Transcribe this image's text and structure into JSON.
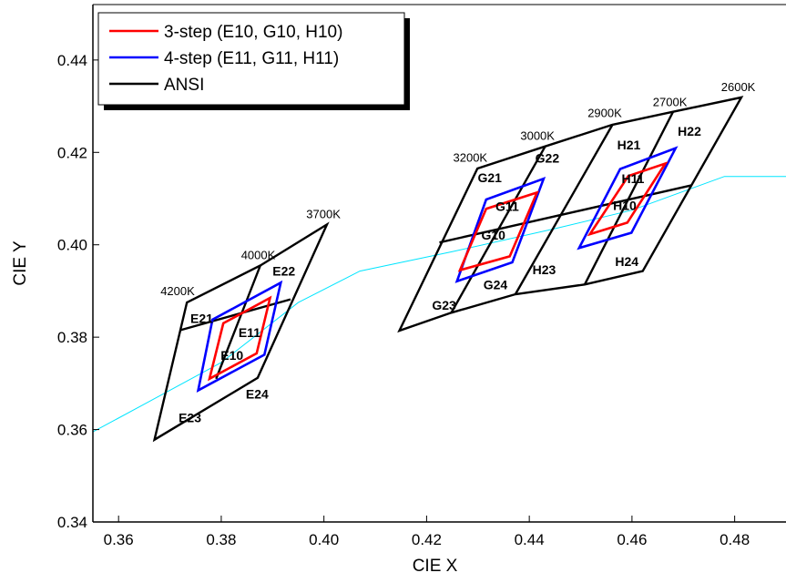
{
  "chart_data": {
    "type": "line",
    "title": "",
    "xlabel": "CIE X",
    "ylabel": "CIE Y",
    "xlim": [
      0.355,
      0.49
    ],
    "ylim": [
      0.34,
      0.452
    ],
    "x_ticks": [
      {
        "value": 0.36,
        "label": "0.36"
      },
      {
        "value": 0.38,
        "label": "0.38"
      },
      {
        "value": 0.4,
        "label": "0.40"
      },
      {
        "value": 0.42,
        "label": "0.42"
      },
      {
        "value": 0.44,
        "label": "0.44"
      },
      {
        "value": 0.46,
        "label": "0.46"
      },
      {
        "value": 0.48,
        "label": "0.48"
      }
    ],
    "y_ticks": [
      {
        "value": 0.34,
        "label": "0.34"
      },
      {
        "value": 0.36,
        "label": "0.36"
      },
      {
        "value": 0.38,
        "label": "0.38"
      },
      {
        "value": 0.4,
        "label": "0.40"
      },
      {
        "value": 0.42,
        "label": "0.42"
      },
      {
        "value": 0.44,
        "label": "0.44"
      }
    ],
    "grid": false,
    "legend_position": "top-left",
    "legend": [
      {
        "label": "3-step (E10, G10, H10)",
        "color": "#ff0000"
      },
      {
        "label": "4-step (E11, G11, H11)",
        "color": "#0000ff"
      },
      {
        "label": "ANSI",
        "color": "#000000"
      }
    ],
    "series": [
      {
        "name": "Planckian locus",
        "color": "#00e5ff",
        "kind": "curve",
        "points": [
          [
            0.355,
            0.3595
          ],
          [
            0.365,
            0.3655
          ],
          [
            0.38,
            0.3745
          ],
          [
            0.395,
            0.3875
          ],
          [
            0.407,
            0.3943
          ],
          [
            0.425,
            0.3985
          ],
          [
            0.445,
            0.4035
          ],
          [
            0.46,
            0.4075
          ],
          [
            0.478,
            0.4148
          ],
          [
            0.49,
            0.4148
          ]
        ]
      },
      {
        "name": "ANSI",
        "color": "#000000",
        "kind": "polygons",
        "polygons": [
          [
            [
              0.367,
              0.3578
            ],
            [
              0.3733,
              0.3875
            ],
            [
              0.3876,
              0.3955
            ],
            [
              0.4006,
              0.4044
            ],
            [
              0.3871,
              0.3712
            ]
          ],
          [
            [
              0.4147,
              0.3814
            ],
            [
              0.4299,
              0.4165
            ],
            [
              0.4431,
              0.4213
            ],
            [
              0.4562,
              0.426
            ],
            [
              0.468,
              0.4288
            ],
            [
              0.4813,
              0.4319
            ],
            [
              0.4621,
              0.3943
            ],
            [
              0.4508,
              0.3914
            ],
            [
              0.4373,
              0.3893
            ],
            [
              0.4248,
              0.3853
            ]
          ]
        ],
        "segments": [
          [
            [
              0.372,
              0.3815
            ],
            [
              0.3935,
              0.3882
            ]
          ],
          [
            [
              0.379,
              0.371
            ],
            [
              0.3876,
              0.3955
            ]
          ],
          [
            [
              0.4225,
              0.4005
            ],
            [
              0.4717,
              0.4129
            ]
          ],
          [
            [
              0.4248,
              0.3853
            ],
            [
              0.4431,
              0.4213
            ]
          ],
          [
            [
              0.4373,
              0.3893
            ],
            [
              0.4562,
              0.426
            ]
          ],
          [
            [
              0.4508,
              0.3914
            ],
            [
              0.468,
              0.4288
            ]
          ]
        ]
      },
      {
        "name": "4-step (E11, G11, H11)",
        "color": "#0000ff",
        "kind": "polygons",
        "polygons": [
          [
            [
              0.3755,
              0.3685
            ],
            [
              0.3783,
              0.3838
            ],
            [
              0.3916,
              0.3918
            ],
            [
              0.3884,
              0.3762
            ]
          ],
          [
            [
              0.4259,
              0.3921
            ],
            [
              0.4316,
              0.4098
            ],
            [
              0.4428,
              0.4143
            ],
            [
              0.4367,
              0.3962
            ]
          ],
          [
            [
              0.4497,
              0.3993
            ],
            [
              0.4577,
              0.4164
            ],
            [
              0.4685,
              0.4209
            ],
            [
              0.4599,
              0.4026
            ]
          ]
        ]
      },
      {
        "name": "3-step (E10, G10, H10)",
        "color": "#ff0000",
        "kind": "polygons",
        "polygons": [
          [
            [
              0.3777,
              0.371
            ],
            [
              0.3804,
              0.383
            ],
            [
              0.3895,
              0.3885
            ],
            [
              0.3869,
              0.3765
            ]
          ],
          [
            [
              0.4265,
              0.3945
            ],
            [
              0.4316,
              0.4078
            ],
            [
              0.4415,
              0.4113
            ],
            [
              0.4362,
              0.3975
            ]
          ],
          [
            [
              0.4518,
              0.4023
            ],
            [
              0.4593,
              0.4149
            ],
            [
              0.4665,
              0.4176
            ],
            [
              0.4591,
              0.4048
            ]
          ]
        ]
      }
    ],
    "cct_labels": [
      {
        "text": "4200K",
        "x": 0.3715,
        "y": 0.3891
      },
      {
        "text": "4000K",
        "x": 0.3872,
        "y": 0.3969
      },
      {
        "text": "3700K",
        "x": 0.3999,
        "y": 0.4058
      },
      {
        "text": "3200K",
        "x": 0.4285,
        "y": 0.418
      },
      {
        "text": "3000K",
        "x": 0.4416,
        "y": 0.4227
      },
      {
        "text": "2900K",
        "x": 0.4547,
        "y": 0.4276
      },
      {
        "text": "2700K",
        "x": 0.4674,
        "y": 0.43
      },
      {
        "text": "2600K",
        "x": 0.4807,
        "y": 0.4333
      }
    ],
    "bin_labels": [
      {
        "text": "E21",
        "x": 0.3762,
        "y": 0.3838
      },
      {
        "text": "E22",
        "x": 0.3922,
        "y": 0.3941
      },
      {
        "text": "E11",
        "x": 0.3855,
        "y": 0.3808
      },
      {
        "text": "E10",
        "x": 0.3821,
        "y": 0.3758
      },
      {
        "text": "E24",
        "x": 0.387,
        "y": 0.3674
      },
      {
        "text": "E23",
        "x": 0.3739,
        "y": 0.3623
      },
      {
        "text": "G21",
        "x": 0.4323,
        "y": 0.4143
      },
      {
        "text": "G22",
        "x": 0.4435,
        "y": 0.4185
      },
      {
        "text": "G11",
        "x": 0.4357,
        "y": 0.4081
      },
      {
        "text": "G10",
        "x": 0.433,
        "y": 0.4019
      },
      {
        "text": "G24",
        "x": 0.4334,
        "y": 0.3911
      },
      {
        "text": "G23",
        "x": 0.4234,
        "y": 0.3867
      },
      {
        "text": "H21",
        "x": 0.4594,
        "y": 0.4214
      },
      {
        "text": "H22",
        "x": 0.4712,
        "y": 0.4243
      },
      {
        "text": "H11",
        "x": 0.4602,
        "y": 0.4141
      },
      {
        "text": "H10",
        "x": 0.4586,
        "y": 0.4083
      },
      {
        "text": "H23",
        "x": 0.4429,
        "y": 0.3944
      },
      {
        "text": "H24",
        "x": 0.459,
        "y": 0.3961
      }
    ]
  }
}
